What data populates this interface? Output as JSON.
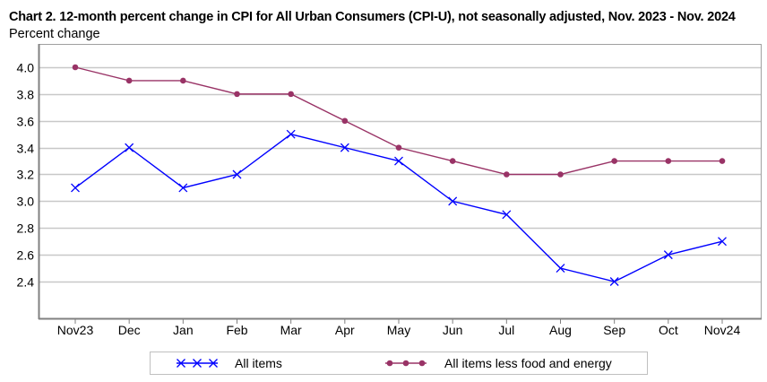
{
  "chart_data": {
    "type": "line",
    "title": "Chart 2. 12-month percent change in CPI for All Urban Consumers (CPI-U), not seasonally adjusted, Nov. 2023 - Nov. 2024",
    "ylabel": "Percent change",
    "xlabel": "",
    "categories": [
      "Nov23",
      "Dec",
      "Jan",
      "Feb",
      "Mar",
      "Apr",
      "May",
      "Jun",
      "Jul",
      "Aug",
      "Sep",
      "Oct",
      "Nov24"
    ],
    "yticks": [
      "4.0",
      "3.8",
      "3.6",
      "3.4",
      "3.2",
      "3.0",
      "2.8",
      "2.6",
      "2.4"
    ],
    "ylim": [
      2.13,
      4.15
    ],
    "grid": true,
    "legend_position": "bottom",
    "series": [
      {
        "name": "All items",
        "color": "#0000ff",
        "marker": "x",
        "values": [
          3.1,
          3.4,
          3.1,
          3.2,
          3.5,
          3.4,
          3.3,
          3.0,
          2.9,
          2.5,
          2.4,
          2.6,
          2.7
        ]
      },
      {
        "name": "All items less food and energy",
        "color": "#993366",
        "marker": "circle",
        "values": [
          4.0,
          3.9,
          3.9,
          3.8,
          3.8,
          3.6,
          3.4,
          3.3,
          3.2,
          3.2,
          3.3,
          3.3,
          3.3
        ]
      }
    ]
  }
}
